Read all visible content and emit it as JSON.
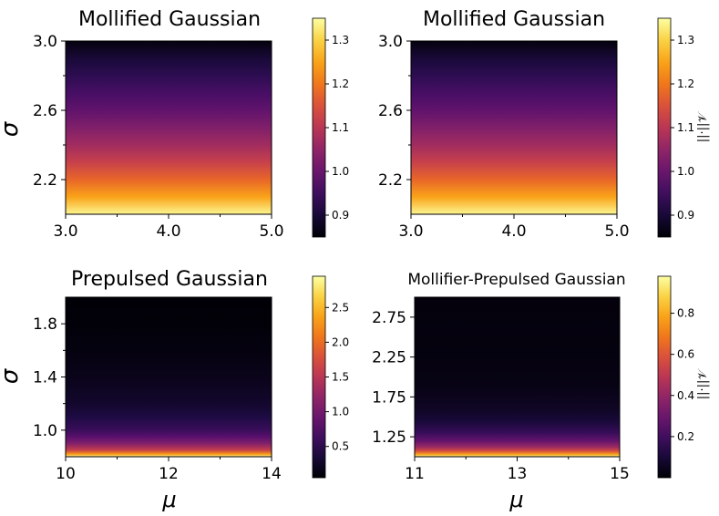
{
  "colors": {
    "colormap": "inferno",
    "background": "#ffffff",
    "axis": "#000000"
  },
  "chart_data": [
    {
      "type": "heatmap",
      "title": "Mollified Gaussian",
      "xlabel": "",
      "ylabel": "σ",
      "xlim": [
        3.0,
        5.0
      ],
      "ylim": [
        2.0,
        3.0
      ],
      "x_ticks": [
        "3.0",
        "4.0",
        "5.0"
      ],
      "y_ticks": [
        "2.2",
        "2.6",
        "3.0"
      ],
      "y_minor_ticks": [
        2.4,
        2.8
      ],
      "colorbar": {
        "label": "",
        "range": [
          0.85,
          1.35
        ],
        "ticks": [
          "0.9",
          "1.0",
          "1.1",
          "1.2",
          "1.3"
        ]
      },
      "field": "row_gradient",
      "rows": [
        {
          "y": 2.0,
          "value": 1.34
        },
        {
          "y": 2.1,
          "value": 1.25
        },
        {
          "y": 2.2,
          "value": 1.18
        },
        {
          "y": 2.3,
          "value": 1.12
        },
        {
          "y": 2.4,
          "value": 1.07
        },
        {
          "y": 2.5,
          "value": 1.03
        },
        {
          "y": 2.6,
          "value": 0.99
        },
        {
          "y": 2.7,
          "value": 0.96
        },
        {
          "y": 2.8,
          "value": 0.93
        },
        {
          "y": 2.9,
          "value": 0.9
        },
        {
          "y": 3.0,
          "value": 0.86
        }
      ]
    },
    {
      "type": "heatmap",
      "title": "Mollified Gaussian",
      "xlabel": "",
      "ylabel": "",
      "xlim": [
        3.0,
        5.0
      ],
      "ylim": [
        2.0,
        3.0
      ],
      "x_ticks": [
        "3.0",
        "4.0",
        "5.0"
      ],
      "y_ticks": [
        "2.2",
        "2.6",
        "3.0"
      ],
      "y_minor_ticks": [
        2.4,
        2.8
      ],
      "colorbar": {
        "label": "||·||𝒱",
        "range": [
          0.85,
          1.35
        ],
        "ticks": [
          "0.9",
          "1.0",
          "1.1",
          "1.2",
          "1.3"
        ]
      },
      "field": "row_gradient",
      "rows": [
        {
          "y": 2.0,
          "value": 1.34
        },
        {
          "y": 2.1,
          "value": 1.25
        },
        {
          "y": 2.2,
          "value": 1.18
        },
        {
          "y": 2.3,
          "value": 1.12
        },
        {
          "y": 2.4,
          "value": 1.07
        },
        {
          "y": 2.5,
          "value": 1.03
        },
        {
          "y": 2.6,
          "value": 0.99
        },
        {
          "y": 2.7,
          "value": 0.96
        },
        {
          "y": 2.8,
          "value": 0.93
        },
        {
          "y": 2.9,
          "value": 0.9
        },
        {
          "y": 3.0,
          "value": 0.86
        }
      ]
    },
    {
      "type": "heatmap",
      "title": "Prepulsed Gaussian",
      "xlabel": "μ",
      "ylabel": "σ",
      "xlim": [
        10,
        14
      ],
      "ylim": [
        0.8,
        2.0
      ],
      "x_ticks": [
        "10",
        "12",
        "14"
      ],
      "y_ticks": [
        "1.0",
        "1.4",
        "1.8"
      ],
      "y_minor_ticks": [
        1.2,
        1.6
      ],
      "colorbar": {
        "label": "",
        "range": [
          0.05,
          2.95
        ],
        "ticks": [
          "0.5",
          "1.0",
          "1.5",
          "2.0",
          "2.5"
        ]
      },
      "field": "row_gradient",
      "rows": [
        {
          "y": 0.8,
          "value": 2.9
        },
        {
          "y": 0.82,
          "value": 2.3
        },
        {
          "y": 0.85,
          "value": 1.6
        },
        {
          "y": 0.9,
          "value": 1.1
        },
        {
          "y": 0.95,
          "value": 0.8
        },
        {
          "y": 1.0,
          "value": 0.6
        },
        {
          "y": 1.1,
          "value": 0.4
        },
        {
          "y": 1.2,
          "value": 0.28
        },
        {
          "y": 1.4,
          "value": 0.17
        },
        {
          "y": 1.6,
          "value": 0.11
        },
        {
          "y": 1.8,
          "value": 0.08
        },
        {
          "y": 2.0,
          "value": 0.06
        }
      ]
    },
    {
      "type": "heatmap",
      "title": "Mollifier-Prepulsed Gaussian",
      "xlabel": "μ",
      "ylabel": "",
      "xlim": [
        11,
        15
      ],
      "ylim": [
        1.0,
        3.0
      ],
      "x_ticks": [
        "11",
        "13",
        "15"
      ],
      "y_ticks": [
        "1.25",
        "1.75",
        "2.25",
        "2.75"
      ],
      "y_minor_ticks": [],
      "colorbar": {
        "label": "||·||𝒱",
        "range": [
          0.0,
          0.98
        ],
        "ticks": [
          "0.2",
          "0.4",
          "0.6",
          "0.8"
        ]
      },
      "field": "row_gradient",
      "rows": [
        {
          "y": 1.0,
          "value": 0.96
        },
        {
          "y": 1.03,
          "value": 0.78
        },
        {
          "y": 1.07,
          "value": 0.58
        },
        {
          "y": 1.12,
          "value": 0.42
        },
        {
          "y": 1.2,
          "value": 0.28
        },
        {
          "y": 1.3,
          "value": 0.18
        },
        {
          "y": 1.45,
          "value": 0.1
        },
        {
          "y": 1.6,
          "value": 0.06
        },
        {
          "y": 1.9,
          "value": 0.03
        },
        {
          "y": 2.3,
          "value": 0.02
        },
        {
          "y": 3.0,
          "value": 0.015
        }
      ]
    }
  ]
}
